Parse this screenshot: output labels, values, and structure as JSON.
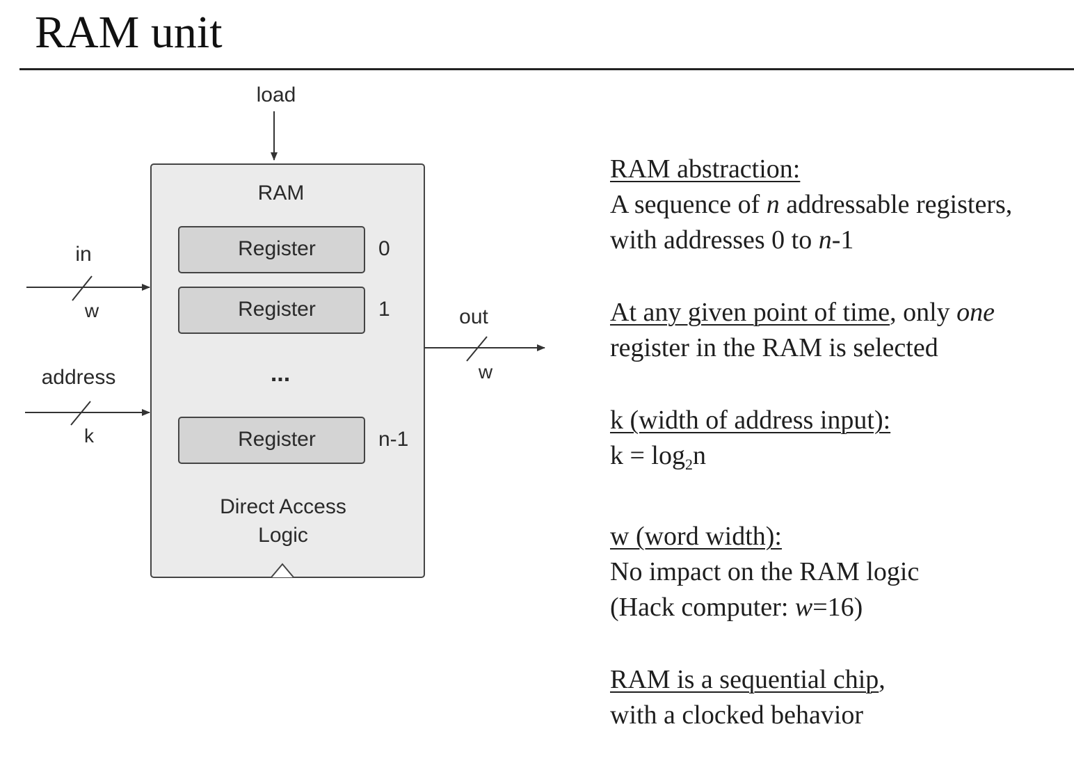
{
  "title": "RAM unit",
  "diagram": {
    "load_label": "load",
    "chip_label": "RAM",
    "registers": [
      {
        "label": "Register",
        "address": "0"
      },
      {
        "label": "Register",
        "address": "1"
      },
      {
        "label": "Register",
        "address": "n-1"
      }
    ],
    "ellipsis": "...",
    "logic_label_line1": "Direct Access",
    "logic_label_line2": "Logic",
    "in_label": "in",
    "in_width": "w",
    "address_label": "address",
    "address_width": "k",
    "out_label": "out",
    "out_width": "w"
  },
  "notes": {
    "abstraction": {
      "heading": "RAM abstraction:",
      "line1_pre": "A sequence of ",
      "line1_var": "n",
      "line1_post": " addressable registers,",
      "line2_pre": "with addresses 0 to ",
      "line2_var": "n",
      "line2_post": "-1"
    },
    "selection": {
      "heading": "At any given point of time",
      "line1_mid": ", only ",
      "line1_em": "one",
      "line2": "register in the RAM is selected"
    },
    "k_width": {
      "heading": "k (width of address input):",
      "formula_pre": "k = log",
      "formula_sub": "2",
      "formula_post": "n"
    },
    "w_width": {
      "heading": "w (word width):",
      "line1": "No impact on the RAM logic",
      "line2_pre": "(Hack computer: ",
      "line2_var": "w",
      "line2_post": "=16)"
    },
    "sequential": {
      "heading": "RAM is a sequential chip",
      "heading_tail": ",",
      "line2": "with a clocked behavior"
    }
  },
  "colors": {
    "chip_fill": "#ebebeb",
    "register_fill": "#d4d4d4",
    "stroke": "#444444"
  }
}
